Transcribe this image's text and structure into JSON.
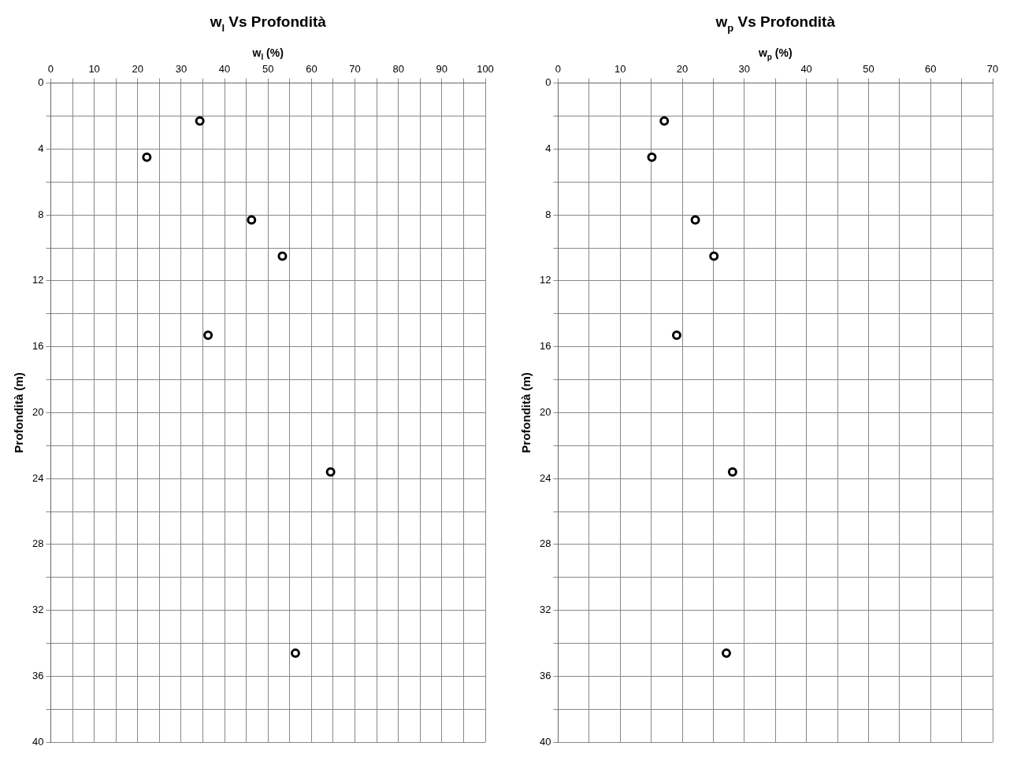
{
  "chart_data": [
    {
      "type": "scatter",
      "title": "w$_{l}$ Vs Profondità",
      "xlabel": "w$_{l}$ (%)",
      "ylabel": "Profondità (m)",
      "x": [
        34.3,
        22.1,
        46.2,
        53.3,
        36.2,
        64.4,
        56.3
      ],
      "series": [
        {
          "color": "#000000",
          "values": [
            2.3,
            4.5,
            8.3,
            10.5,
            15.3,
            23.6,
            34.6
          ]
        }
      ],
      "xlim": [
        0,
        100
      ],
      "xticks": [
        0,
        {
          "value": 5,
          "label": null
        },
        10,
        {
          "value": 15,
          "label": null
        },
        20,
        {
          "value": 25,
          "label": null
        },
        30,
        {
          "value": 35,
          "label": null
        },
        40,
        {
          "value": 45,
          "label": null
        },
        50,
        {
          "value": 55,
          "label": null
        },
        60,
        {
          "value": 65,
          "label": null
        },
        70,
        {
          "value": 75,
          "label": null
        },
        80,
        {
          "value": 85,
          "label": null
        },
        90,
        {
          "value": 95,
          "label": null
        },
        100
      ],
      "ylim": [
        40,
        0
      ],
      "yticks": [
        0,
        {
          "value": 2,
          "label": null
        },
        4,
        {
          "value": 6,
          "label": null
        },
        8,
        {
          "value": 10,
          "label": null
        },
        12,
        {
          "value": 14,
          "label": null
        },
        16,
        {
          "value": 18,
          "label": null
        },
        20,
        {
          "value": 22,
          "label": null
        },
        24,
        {
          "value": 26,
          "label": null
        },
        28,
        {
          "value": 30,
          "label": null
        },
        32,
        {
          "value": 34,
          "label": null
        },
        36,
        {
          "value": 38,
          "label": null
        },
        40
      ],
      "grid": true,
      "legend": false,
      "marker": "circle"
    },
    {
      "type": "scatter",
      "title": "w$_{p}$ Vs Profondità",
      "xlabel": "w$_{p}$ (%)",
      "ylabel": "Profondità (m)",
      "x": [
        17.1,
        15.1,
        22.1,
        25.1,
        19.1,
        28.1,
        27.1
      ],
      "series": [
        {
          "color": "#000000",
          "values": [
            2.3,
            4.5,
            8.3,
            10.5,
            15.3,
            23.6,
            34.6
          ]
        }
      ],
      "xlim": [
        0,
        70
      ],
      "xticks": [
        0,
        {
          "value": 5,
          "label": null
        },
        10,
        {
          "value": 15,
          "label": null
        },
        20,
        {
          "value": 25,
          "label": null
        },
        30,
        {
          "value": 35,
          "label": null
        },
        40,
        {
          "value": 45,
          "label": null
        },
        50,
        {
          "value": 55,
          "label": null
        },
        60,
        {
          "value": 65,
          "label": null
        },
        70
      ],
      "ylim": [
        40,
        0
      ],
      "yticks": [
        0,
        {
          "value": 2,
          "label": null
        },
        4,
        {
          "value": 6,
          "label": null
        },
        8,
        {
          "value": 10,
          "label": null
        },
        12,
        {
          "value": 14,
          "label": null
        },
        16,
        {
          "value": 18,
          "label": null
        },
        20,
        {
          "value": 22,
          "label": null
        },
        24,
        {
          "value": 26,
          "label": null
        },
        28,
        {
          "value": 30,
          "label": null
        },
        32,
        {
          "value": 34,
          "label": null
        },
        36,
        {
          "value": 38,
          "label": null
        },
        40
      ],
      "grid": true,
      "legend": false,
      "marker": "circle"
    }
  ]
}
